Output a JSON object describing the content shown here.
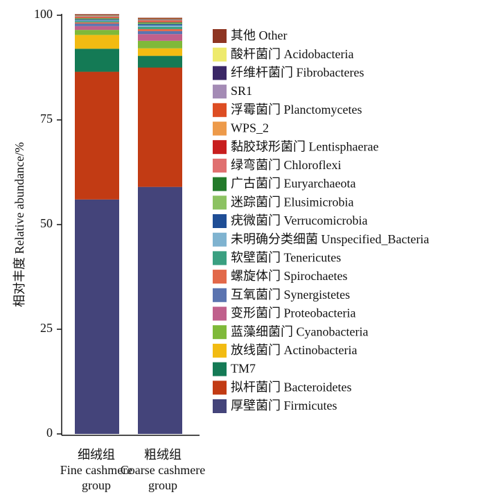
{
  "chart_data": {
    "type": "bar",
    "stacked": true,
    "ylabel": "相对丰度 Relative abundance/%",
    "ylim": [
      0,
      100
    ],
    "yticks": [
      "0",
      "25",
      "50",
      "75",
      "100"
    ],
    "grid": false,
    "legend_position": "right",
    "categories": [
      {
        "zh": "细绒组",
        "en": "Fine cashmere group"
      },
      {
        "zh": "粗绒组",
        "en": "Coarse cashmere group"
      }
    ],
    "series": [
      {
        "name": "厚壁菌门  Firmicutes",
        "color": "#44447a",
        "values": [
          56.0,
          59.0
        ]
      },
      {
        "name": "拟杆菌门  Bacteroidetes",
        "color": "#c23b14",
        "values": [
          30.5,
          28.5
        ]
      },
      {
        "name": "TM7",
        "color": "#147a55",
        "values": [
          5.5,
          2.8
        ]
      },
      {
        "name": "放线菌门  Actinobacteria",
        "color": "#f2bb12",
        "values": [
          3.3,
          1.8
        ]
      },
      {
        "name": "蓝藻细菌门  Cyanobacteria",
        "color": "#7fb93a",
        "values": [
          1.2,
          1.8
        ]
      },
      {
        "name": "变形菌门  Proteobacteria",
        "color": "#c0608c",
        "values": [
          0.9,
          1.6
        ]
      },
      {
        "name": "互氧菌门  Synergistetes",
        "color": "#5b74b0",
        "values": [
          0.6,
          0.7
        ]
      },
      {
        "name": "螺旋体门  Spirochaetes",
        "color": "#e2694a",
        "values": [
          0.3,
          0.5
        ]
      },
      {
        "name": "软壁菌门  Tenericutes",
        "color": "#3aa081",
        "values": [
          0.3,
          0.5
        ]
      },
      {
        "name": "未明确分类细菌  Unspecified_Bacteria",
        "color": "#7fb3d0",
        "values": [
          0.2,
          0.4
        ]
      },
      {
        "name": "疣微菌门  Verrucomicrobia",
        "color": "#1f4e96",
        "values": [
          0.2,
          0.3
        ]
      },
      {
        "name": "迷踪菌门  Elusimicrobia",
        "color": "#8cc262",
        "values": [
          0.15,
          0.2
        ]
      },
      {
        "name": "广古菌门  Euryarchaeota",
        "color": "#237a2a",
        "values": [
          0.15,
          0.2
        ]
      },
      {
        "name": "绿弯菌门  Chloroflexi",
        "color": "#e07070",
        "values": [
          0.1,
          0.15
        ]
      },
      {
        "name": "黏胶球形菌门  Lentisphaerae",
        "color": "#c81e1e",
        "values": [
          0.1,
          0.15
        ]
      },
      {
        "name": "WPS_2",
        "color": "#ed9a4a",
        "values": [
          0.1,
          0.1
        ]
      },
      {
        "name": "浮霉菌门  Planctomycetes",
        "color": "#dd4d23",
        "values": [
          0.1,
          0.1
        ]
      },
      {
        "name": "SR1",
        "color": "#a48bb5",
        "values": [
          0.1,
          0.1
        ]
      },
      {
        "name": "纤维杆菌门  Fibrobacteres",
        "color": "#3a2766",
        "values": [
          0.1,
          0.1
        ]
      },
      {
        "name": "酸杆菌门  Acidobacteria",
        "color": "#eeea6c",
        "values": [
          0.1,
          0.1
        ]
      },
      {
        "name": "其他  Other",
        "color": "#8e3522",
        "values": [
          0.25,
          0.3
        ]
      }
    ]
  }
}
